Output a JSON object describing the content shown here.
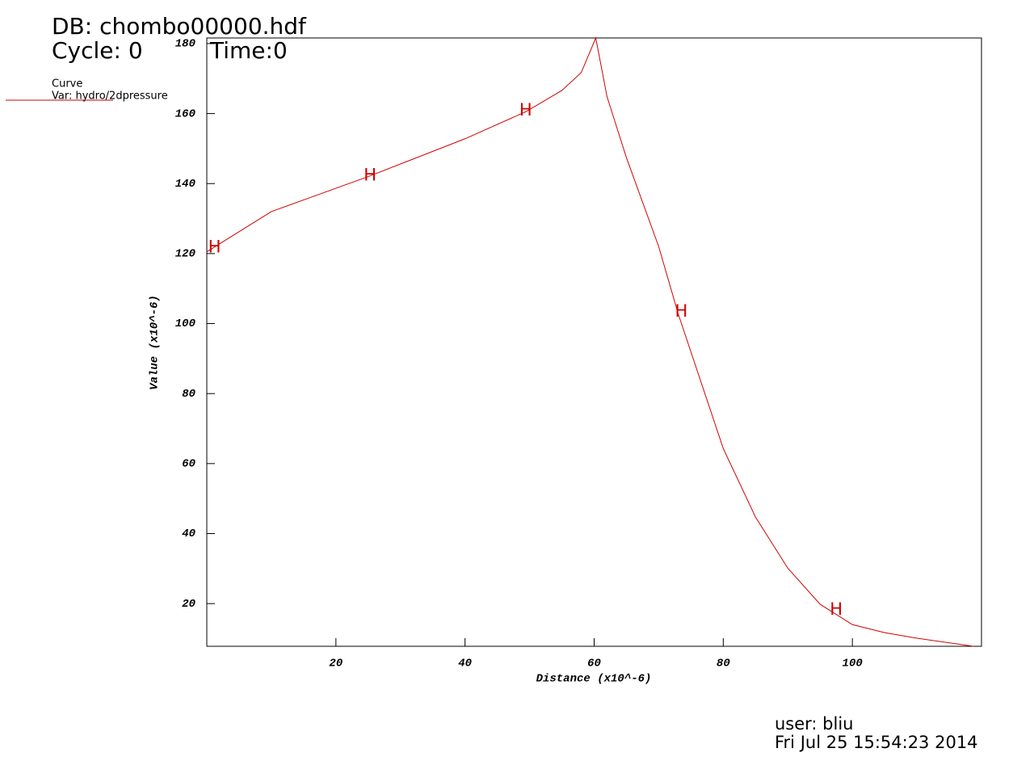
{
  "chart_data": {
    "type": "line",
    "db_label": "DB: chombo00000.hdf",
    "cycle_label": "Cycle: 0",
    "time_label": "Time:0",
    "legend_title": "Curve",
    "xlabel": "Distance (x10^-6)",
    "ylabel": "Value (x10^-6)",
    "user_label": "user: bliu",
    "date_label": "Fri Jul 25 15:54:23 2014",
    "x": [
      0,
      10,
      25,
      40,
      49.5,
      55,
      58,
      60.25,
      62,
      65,
      70,
      73,
      80,
      85,
      90,
      95,
      100,
      105,
      110,
      118.75
    ],
    "series": [
      {
        "name": "Var: hydro/2dpressure",
        "color": "#d00000",
        "values": [
          120.5,
          132,
          142,
          152.8,
          160.6,
          166.6,
          171.7,
          181.6,
          164.8,
          147.4,
          122,
          102.9,
          64.3,
          44.7,
          30.1,
          19.8,
          14,
          11.7,
          10.1,
          7.8
        ]
      }
    ],
    "markers": {
      "label": "H",
      "x": [
        1.2,
        25.3,
        49.4,
        73.5,
        97.5
      ],
      "y": [
        121.7,
        142.2,
        160.8,
        103.3,
        18.2
      ]
    },
    "xlim": [
      0,
      120
    ],
    "ylim": [
      7.8,
      181.6
    ],
    "xticks": [
      20,
      40,
      60,
      80,
      100
    ],
    "yticks": [
      20,
      40,
      60,
      80,
      100,
      120,
      140,
      160,
      180
    ]
  }
}
